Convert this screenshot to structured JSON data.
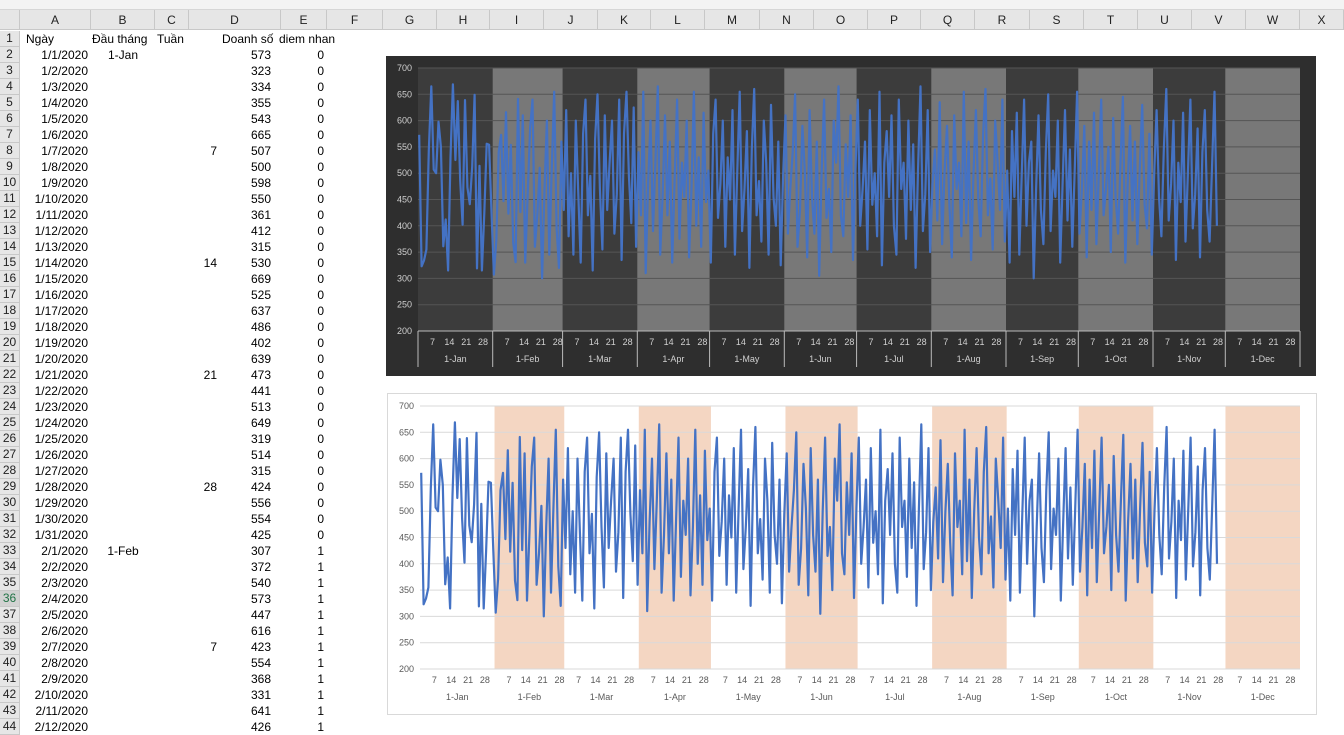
{
  "columns": [
    "A",
    "B",
    "C",
    "D",
    "E",
    "F",
    "G",
    "H",
    "I",
    "J",
    "K",
    "L",
    "M",
    "N",
    "O",
    "P",
    "Q",
    "R",
    "S",
    "T",
    "U",
    "V",
    "W",
    "X"
  ],
  "selected_row": 36,
  "headers": {
    "A": "Ngày",
    "B": "Đầu tháng",
    "C": "Tuần",
    "D": "Doanh số",
    "E": "diem nhan"
  },
  "rows": [
    {
      "n": 2,
      "A": "1/1/2020",
      "B": "1-Jan",
      "C": "",
      "D": "573",
      "E": "0"
    },
    {
      "n": 3,
      "A": "1/2/2020",
      "B": "",
      "C": "",
      "D": "323",
      "E": "0"
    },
    {
      "n": 4,
      "A": "1/3/2020",
      "B": "",
      "C": "",
      "D": "334",
      "E": "0"
    },
    {
      "n": 5,
      "A": "1/4/2020",
      "B": "",
      "C": "",
      "D": "355",
      "E": "0"
    },
    {
      "n": 6,
      "A": "1/5/2020",
      "B": "",
      "C": "",
      "D": "543",
      "E": "0"
    },
    {
      "n": 7,
      "A": "1/6/2020",
      "B": "",
      "C": "",
      "D": "665",
      "E": "0"
    },
    {
      "n": 8,
      "A": "1/7/2020",
      "B": "",
      "C": "7",
      "D": "507",
      "E": "0"
    },
    {
      "n": 9,
      "A": "1/8/2020",
      "B": "",
      "C": "",
      "D": "500",
      "E": "0"
    },
    {
      "n": 10,
      "A": "1/9/2020",
      "B": "",
      "C": "",
      "D": "598",
      "E": "0"
    },
    {
      "n": 11,
      "A": "1/10/2020",
      "B": "",
      "C": "",
      "D": "550",
      "E": "0"
    },
    {
      "n": 12,
      "A": "1/11/2020",
      "B": "",
      "C": "",
      "D": "361",
      "E": "0"
    },
    {
      "n": 13,
      "A": "1/12/2020",
      "B": "",
      "C": "",
      "D": "412",
      "E": "0"
    },
    {
      "n": 14,
      "A": "1/13/2020",
      "B": "",
      "C": "",
      "D": "315",
      "E": "0"
    },
    {
      "n": 15,
      "A": "1/14/2020",
      "B": "",
      "C": "14",
      "D": "530",
      "E": "0"
    },
    {
      "n": 16,
      "A": "1/15/2020",
      "B": "",
      "C": "",
      "D": "669",
      "E": "0"
    },
    {
      "n": 17,
      "A": "1/16/2020",
      "B": "",
      "C": "",
      "D": "525",
      "E": "0"
    },
    {
      "n": 18,
      "A": "1/17/2020",
      "B": "",
      "C": "",
      "D": "637",
      "E": "0"
    },
    {
      "n": 19,
      "A": "1/18/2020",
      "B": "",
      "C": "",
      "D": "486",
      "E": "0"
    },
    {
      "n": 20,
      "A": "1/19/2020",
      "B": "",
      "C": "",
      "D": "402",
      "E": "0"
    },
    {
      "n": 21,
      "A": "1/20/2020",
      "B": "",
      "C": "",
      "D": "639",
      "E": "0"
    },
    {
      "n": 22,
      "A": "1/21/2020",
      "B": "",
      "C": "21",
      "D": "473",
      "E": "0"
    },
    {
      "n": 23,
      "A": "1/22/2020",
      "B": "",
      "C": "",
      "D": "441",
      "E": "0"
    },
    {
      "n": 24,
      "A": "1/23/2020",
      "B": "",
      "C": "",
      "D": "513",
      "E": "0"
    },
    {
      "n": 25,
      "A": "1/24/2020",
      "B": "",
      "C": "",
      "D": "649",
      "E": "0"
    },
    {
      "n": 26,
      "A": "1/25/2020",
      "B": "",
      "C": "",
      "D": "319",
      "E": "0"
    },
    {
      "n": 27,
      "A": "1/26/2020",
      "B": "",
      "C": "",
      "D": "514",
      "E": "0"
    },
    {
      "n": 28,
      "A": "1/27/2020",
      "B": "",
      "C": "",
      "D": "315",
      "E": "0"
    },
    {
      "n": 29,
      "A": "1/28/2020",
      "B": "",
      "C": "28",
      "D": "424",
      "E": "0"
    },
    {
      "n": 30,
      "A": "1/29/2020",
      "B": "",
      "C": "",
      "D": "556",
      "E": "0"
    },
    {
      "n": 31,
      "A": "1/30/2020",
      "B": "",
      "C": "",
      "D": "554",
      "E": "0"
    },
    {
      "n": 32,
      "A": "1/31/2020",
      "B": "",
      "C": "",
      "D": "425",
      "E": "0"
    },
    {
      "n": 33,
      "A": "2/1/2020",
      "B": "1-Feb",
      "C": "",
      "D": "307",
      "E": "1"
    },
    {
      "n": 34,
      "A": "2/2/2020",
      "B": "",
      "C": "",
      "D": "372",
      "E": "1"
    },
    {
      "n": 35,
      "A": "2/3/2020",
      "B": "",
      "C": "",
      "D": "540",
      "E": "1"
    },
    {
      "n": 36,
      "A": "2/4/2020",
      "B": "",
      "C": "",
      "D": "573",
      "E": "1"
    },
    {
      "n": 37,
      "A": "2/5/2020",
      "B": "",
      "C": "",
      "D": "447",
      "E": "1"
    },
    {
      "n": 38,
      "A": "2/6/2020",
      "B": "",
      "C": "",
      "D": "616",
      "E": "1"
    },
    {
      "n": 39,
      "A": "2/7/2020",
      "B": "",
      "C": "7",
      "D": "423",
      "E": "1"
    },
    {
      "n": 40,
      "A": "2/8/2020",
      "B": "",
      "C": "",
      "D": "554",
      "E": "1"
    },
    {
      "n": 41,
      "A": "2/9/2020",
      "B": "",
      "C": "",
      "D": "368",
      "E": "1"
    },
    {
      "n": 42,
      "A": "2/10/2020",
      "B": "",
      "C": "",
      "D": "331",
      "E": "1"
    },
    {
      "n": 43,
      "A": "2/11/2020",
      "B": "",
      "C": "",
      "D": "641",
      "E": "1"
    },
    {
      "n": 44,
      "A": "2/12/2020",
      "B": "",
      "C": "",
      "D": "426",
      "E": "1"
    }
  ],
  "chart_data": [
    {
      "type": "line",
      "theme": "dark",
      "ylim": [
        200,
        700
      ],
      "yticks": [
        "200",
        "250",
        "300",
        "350",
        "400",
        "450",
        "500",
        "550",
        "600",
        "650",
        "700"
      ],
      "months": [
        "1-Jan",
        "1-Feb",
        "1-Mar",
        "1-Apr",
        "1-May",
        "1-Jun",
        "1-Jul",
        "1-Aug",
        "1-Sep",
        "1-Oct",
        "1-Nov",
        "1-Dec"
      ],
      "week_ticks": [
        "7",
        "14",
        "21",
        "28"
      ],
      "highlight_months": [
        1,
        3,
        5,
        7,
        9,
        11
      ],
      "highlight_color": "#8c8c8c",
      "line_color": "#4472c4",
      "grid": true,
      "series": [
        {
          "values": [
            573,
            323,
            334,
            355,
            543,
            665,
            507,
            500,
            598,
            550,
            361,
            412,
            315,
            530,
            669,
            525,
            637,
            486,
            402,
            639,
            473,
            441,
            513,
            649,
            319,
            514,
            315,
            424,
            556,
            554,
            425,
            307,
            372,
            540,
            573,
            447,
            616,
            423,
            554,
            368,
            331,
            641,
            426,
            610,
            330,
            455,
            585,
            640,
            360,
            420,
            510,
            300,
            470,
            600,
            345,
            505,
            655,
            395,
            320,
            560,
            430,
            620,
            380,
            500,
            345,
            600,
            460,
            330,
            575,
            640,
            420,
            495,
            315,
            565,
            650,
            470,
            355,
            610,
            430,
            520,
            600,
            385,
            460,
            640,
            335,
            575,
            655,
            495,
            405,
            625,
            360,
            540,
            420,
            655,
            310,
            480,
            600,
            390,
            520,
            665,
            345,
            455,
            610,
            420,
            560,
            330,
            485,
            640,
            375,
            520,
            455,
            600,
            340,
            470,
            655,
            400,
            530,
            360,
            615,
            445,
            505,
            330,
            575,
            640,
            415,
            480,
            600,
            360,
            530,
            450,
            620,
            345,
            505,
            655,
            390,
            470,
            580,
            320,
            545,
            660,
            420,
            485,
            370,
            600,
            520,
            345,
            630,
            455,
            400,
            560,
            325,
            495,
            610,
            385,
            470,
            540,
            650,
            360,
            430,
            590,
            505,
            340,
            620,
            455,
            385,
            560,
            305,
            500,
            640,
            415,
            470,
            350,
            600,
            520,
            665,
            420,
            380,
            555,
            455,
            610,
            335,
            505,
            640,
            400,
            470,
            560,
            355,
            620,
            440,
            500,
            380,
            655,
            325,
            520,
            580,
            455,
            610,
            400,
            345,
            640,
            470,
            520,
            375,
            600,
            430,
            555,
            320,
            505,
            665,
            390,
            460,
            620,
            350,
            480,
            545,
            410,
            635,
            365,
            500,
            590,
            440,
            340,
            610,
            470,
            520,
            380,
            655,
            405,
            560,
            335,
            500,
            620,
            450,
            380,
            575,
            660,
            420,
            490,
            355,
            600,
            520,
            430,
            640,
            370,
            505,
            330,
            580,
            455,
            615,
            345,
            495,
            640,
            400,
            520,
            560,
            300,
            470,
            610,
            430,
            365,
            540,
            650,
            390,
            505,
            455,
            600,
            330,
            480,
            620,
            410,
            545,
            360,
            505,
            655,
            385,
            470,
            590,
            340,
            560,
            430,
            615,
            365,
            500,
            640,
            420,
            470,
            550,
            350,
            605,
            455,
            385,
            520,
            645,
            330,
            480,
            590,
            410,
            560,
            365,
            505,
            630,
            440,
            395,
            575,
            345,
            500,
            620,
            455,
            380,
            545,
            660,
            410,
            480,
            600,
            335,
            520,
            445,
            615,
            370,
            500,
            640,
            395,
            460,
            585,
            340,
            540,
            620,
            430,
            370,
            510,
            655,
            400
          ]
        }
      ]
    },
    {
      "type": "line",
      "theme": "light",
      "ylim": [
        200,
        700
      ],
      "yticks": [
        "200",
        "250",
        "300",
        "350",
        "400",
        "450",
        "500",
        "550",
        "600",
        "650",
        "700"
      ],
      "months": [
        "1-Jan",
        "1-Feb",
        "1-Mar",
        "1-Apr",
        "1-May",
        "1-Jun",
        "1-Jul",
        "1-Aug",
        "1-Sep",
        "1-Oct",
        "1-Nov",
        "1-Dec"
      ],
      "week_ticks": [
        "7",
        "14",
        "21",
        "28"
      ],
      "highlight_months": [
        1,
        3,
        5,
        7,
        9,
        11
      ],
      "highlight_color": "#f4d6c2",
      "line_color": "#4472c4",
      "grid": true,
      "series": [
        {
          "values": "same-as-chart-1"
        }
      ]
    }
  ]
}
